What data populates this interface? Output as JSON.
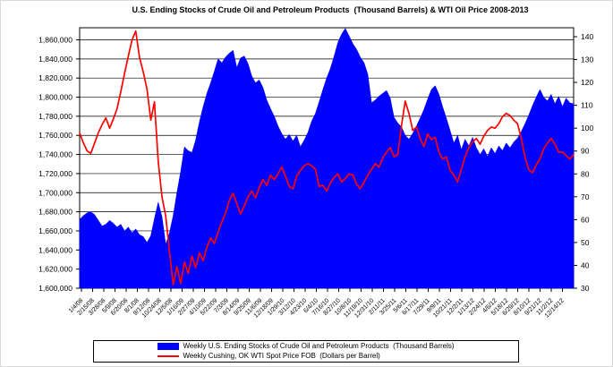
{
  "title": "U.S. Ending Stocks of Crude Oil and Petroleum Products  (Thousand Barrels) & WTI Oil Price 2008-2013",
  "legend": [
    {
      "label": "Weekly U.S. Ending Stocks of Crude Oil and Petroleum Products  (Thousand Barrels)",
      "color": "#0000FF",
      "type": "area"
    },
    {
      "label": "Weekly Cushing, OK WTI Spot Price FOB  (Dollars per Barrel)",
      "color": "#FF0000",
      "type": "line"
    }
  ],
  "chart_data": {
    "type": "area",
    "title": "U.S. Ending Stocks of Crude Oil and Petroleum Products  (Thousand Barrels) & WTI Oil Price 2008-2013",
    "grid": true,
    "legend_position": "bottom",
    "x_tick_labels": [
      "1/4/08",
      "2/15/08",
      "3/28/08",
      "5/9/08",
      "6/20/08",
      "8/1/08",
      "9/12/08",
      "10/24/08",
      "12/5/08",
      "1/16/09",
      "2/27/09",
      "4/10/09",
      "5/22/09",
      "7/3/09",
      "8/14/09",
      "9/25/09",
      "11/6/09",
      "12/18/09",
      "1/29/10",
      "3/12/10",
      "4/23/10",
      "6/4/10",
      "7/16/10",
      "8/27/10",
      "10/8/10",
      "11/19/10",
      "12/31/10",
      "2/11/11",
      "3/25/11",
      "5/6/11",
      "6/17/11",
      "7/29/11",
      "9/9/11",
      "10/21/11",
      "12/2/11",
      "1/13/12",
      "2/24/12",
      "4/6/12",
      "5/18/12",
      "6/29/12",
      "8/10/12",
      "9/21/12",
      "11/2/12",
      "12/14/12"
    ],
    "y_left": {
      "unit": "Thousand Barrels",
      "min": 1600000,
      "max": 1860000,
      "step": 20000,
      "labels": [
        "1,860,000",
        "1,840,000",
        "1,820,000",
        "1,800,000",
        "1,780,000",
        "1,760,000",
        "1,740,000",
        "1,720,000",
        "1,700,000",
        "1,680,000",
        "1,660,000",
        "1,640,000",
        "1,620,000",
        "1,600,000"
      ]
    },
    "y_right": {
      "unit": "Dollars per Barrel",
      "min": 30,
      "max": 140,
      "step": 10,
      "labels": [
        "140",
        "130",
        "120",
        "110",
        "100",
        "90",
        "80",
        "70",
        "60",
        "50",
        "40",
        "30"
      ]
    },
    "series": [
      {
        "name": "Weekly U.S. Ending Stocks of Crude Oil and Petroleum Products (Thousand Barrels)",
        "type": "area",
        "axis": "left",
        "color": "#0000FF",
        "values": [
          1672000,
          1676000,
          1679000,
          1680000,
          1677000,
          1671000,
          1665000,
          1667000,
          1671000,
          1668000,
          1664000,
          1667000,
          1660000,
          1664000,
          1658000,
          1662000,
          1656000,
          1654000,
          1648000,
          1655000,
          1673000,
          1690000,
          1675000,
          1646000,
          1658000,
          1676000,
          1700000,
          1722000,
          1748000,
          1744000,
          1742000,
          1755000,
          1774000,
          1790000,
          1804000,
          1815000,
          1827000,
          1840000,
          1836000,
          1842000,
          1846000,
          1849000,
          1831000,
          1841000,
          1843000,
          1835000,
          1822000,
          1815000,
          1818000,
          1810000,
          1797000,
          1788000,
          1780000,
          1770000,
          1762000,
          1756000,
          1761000,
          1754000,
          1760000,
          1748000,
          1755000,
          1763000,
          1775000,
          1783000,
          1795000,
          1808000,
          1820000,
          1830000,
          1843000,
          1857000,
          1866000,
          1872000,
          1864000,
          1856000,
          1850000,
          1842000,
          1836000,
          1824000,
          1794000,
          1797000,
          1801000,
          1804000,
          1807000,
          1799000,
          1779000,
          1773000,
          1769000,
          1760000,
          1756000,
          1762000,
          1770000,
          1778000,
          1787000,
          1798000,
          1808000,
          1812000,
          1803000,
          1790000,
          1778000,
          1765000,
          1752000,
          1760000,
          1745000,
          1756000,
          1749000,
          1758000,
          1747000,
          1740000,
          1746000,
          1738000,
          1747000,
          1741000,
          1749000,
          1744000,
          1752000,
          1747000,
          1753000,
          1757000,
          1764000,
          1772000,
          1781000,
          1791000,
          1800000,
          1808000,
          1800000,
          1796000,
          1803000,
          1793000,
          1801000,
          1790000,
          1799000,
          1794000,
          1793000
        ]
      },
      {
        "name": "Weekly Cushing, OK WTI Spot Price FOB (Dollars per Barrel)",
        "type": "line",
        "axis": "right",
        "color": "#FF0000",
        "values": [
          97.9,
          93.5,
          90.0,
          89.0,
          93.5,
          98.0,
          101.5,
          104.5,
          100.0,
          104.0,
          108.5,
          116.0,
          124.0,
          131.5,
          138.5,
          142.5,
          131.0,
          124.5,
          117.0,
          103.5,
          111.5,
          85.5,
          70.0,
          61.5,
          46.0,
          31.5,
          39.5,
          32.0,
          41.5,
          36.5,
          44.0,
          39.0,
          45.5,
          42.0,
          48.0,
          52.0,
          49.5,
          54.5,
          59.0,
          63.0,
          68.5,
          71.5,
          67.0,
          62.5,
          66.0,
          70.0,
          72.5,
          69.5,
          74.0,
          77.5,
          75.0,
          79.5,
          77.5,
          80.0,
          83.0,
          79.0,
          74.5,
          73.5,
          79.0,
          81.5,
          83.5,
          84.5,
          83.5,
          82.0,
          74.5,
          75.0,
          72.5,
          76.0,
          78.5,
          80.0,
          76.5,
          78.0,
          80.0,
          79.5,
          75.5,
          73.5,
          76.5,
          79.5,
          82.0,
          84.5,
          83.0,
          87.0,
          89.5,
          91.5,
          87.5,
          88.5,
          101.0,
          111.8,
          106.5,
          99.0,
          100.5,
          95.5,
          92.0,
          97.5,
          95.0,
          96.0,
          89.5,
          86.5,
          87.5,
          81.5,
          79.5,
          76.5,
          82.0,
          87.5,
          91.5,
          94.0,
          95.5,
          93.0,
          96.5,
          99.0,
          100.5,
          100.0,
          102.0,
          105.0,
          106.5,
          105.5,
          103.5,
          102.0,
          95.5,
          87.5,
          82.0,
          80.5,
          84.0,
          86.5,
          91.0,
          93.5,
          95.5,
          93.0,
          89.5,
          89.5,
          88.0,
          86.5,
          88.5
        ]
      }
    ]
  }
}
